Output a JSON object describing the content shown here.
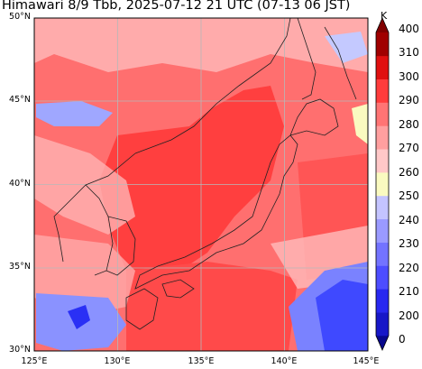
{
  "title": "Himawari 8/9 Tbb, 2025-07-12 21 UTC (07-13 06 JST)",
  "axes": {
    "x_ticks": [
      "125°E",
      "130°E",
      "135°E",
      "140°E",
      "145°E"
    ],
    "y_ticks": [
      "30°N",
      "35°N",
      "40°N",
      "45°N",
      "50°N"
    ]
  },
  "colorbar": {
    "unit": "K",
    "ticks": [
      "0",
      "200",
      "210",
      "220",
      "230",
      "240",
      "250",
      "260",
      "270",
      "280",
      "290",
      "300",
      "310",
      "400"
    ],
    "colors": [
      "#08088c",
      "#1717c8",
      "#2828f0",
      "#4d4dff",
      "#7373ff",
      "#9a9aff",
      "#c4c4ff",
      "#fafac0",
      "#ffc8c8",
      "#ff9f9f",
      "#ff7474",
      "#ff3c3c",
      "#e01010",
      "#a00000",
      "#800000"
    ]
  },
  "map": {
    "region": "Japan and surrounding seas",
    "lon_range": [
      125,
      145
    ],
    "lat_range": [
      30,
      50
    ],
    "grid": true,
    "colors": {
      "warm_sea": "#ff4040",
      "land_warm": "#ff6a6a",
      "cloud_mid": "#ffbcbc",
      "cloud_high": "#aab0ff",
      "cloud_cold": "#3b3bff",
      "coastline": "#222222",
      "grid": "#b8b8b8"
    }
  }
}
